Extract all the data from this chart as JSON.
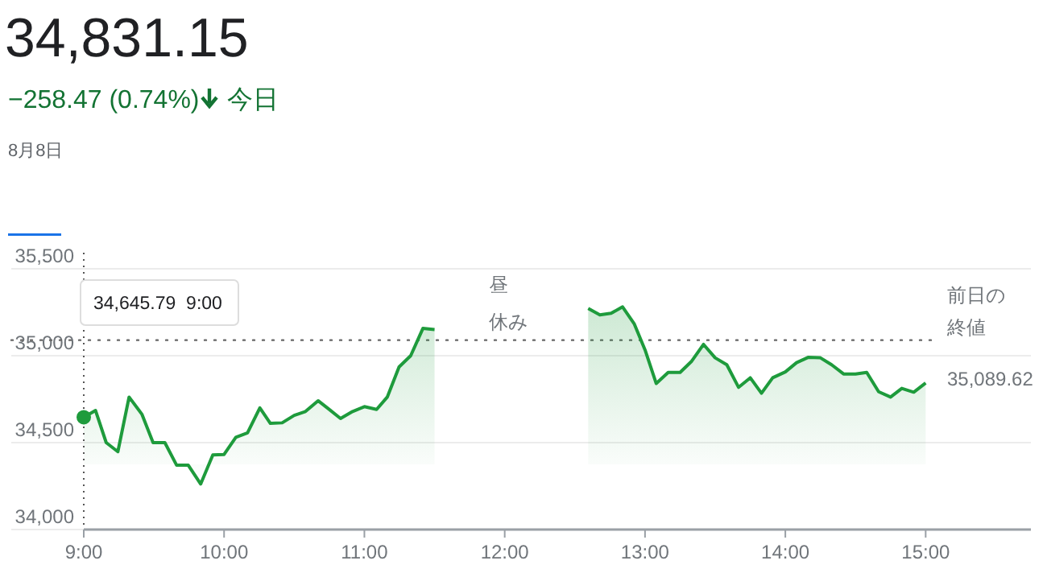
{
  "chart_data": {
    "type": "area",
    "title": "34,831.15",
    "subtitle": "−258.47 (0.74%)",
    "annotations": [
      "今日",
      "8月8日",
      "昼休み",
      "34,645.79  9:00",
      "35,089.62"
    ],
    "x": [
      9,
      9.084,
      9.16,
      9.243,
      9.323,
      9.414,
      9.494,
      9.578,
      9.662,
      9.745,
      9.833,
      9.92,
      10,
      10.084,
      10.167,
      10.255,
      10.33,
      10.414,
      10.5,
      10.58,
      10.67,
      10.745,
      10.83,
      10.916,
      11,
      11.087,
      11.163,
      11.247,
      11.33,
      11.417,
      11.5,
      12,
      12.595,
      12.678,
      12.758,
      12.84,
      12.924,
      13,
      13.08,
      13.165,
      13.25,
      13.333,
      13.417,
      13.5,
      13.583,
      13.667,
      13.75,
      13.83,
      13.91,
      14,
      14.08,
      14.165,
      14.25,
      14.33,
      14.415,
      14.5,
      14.58,
      14.665,
      14.75,
      14.83,
      14.915,
      15
    ],
    "series": [
      {
        "color": "#1e9b3c",
        "values": [
          34646,
          34685,
          34500,
          34448,
          34762,
          34664,
          34500,
          34500,
          34370,
          34370,
          34262,
          34429,
          34432,
          34531,
          34556,
          34700,
          34611,
          34614,
          34657,
          34679,
          34741,
          34694,
          34639,
          34679,
          34707,
          34691,
          34762,
          34935,
          35000,
          35157,
          35151,
          null,
          35272,
          35235,
          35244,
          35281,
          35182,
          35034,
          34840,
          34904,
          34904,
          34969,
          35065,
          34988,
          34948,
          34818,
          34873,
          34784,
          34873,
          34907,
          34960,
          34991,
          34988,
          34948,
          34895,
          34895,
          34904,
          34793,
          34762,
          34812,
          34790,
          34843
        ]
      }
    ],
    "xlim": [
      9,
      15.75
    ],
    "xticks": [
      {
        "value": 9,
        "label": "9:00"
      },
      {
        "value": 10,
        "label": "10:00"
      },
      {
        "value": 11,
        "label": "11:00"
      },
      {
        "value": 12,
        "label": "12:00"
      },
      {
        "value": 13,
        "label": "13:00"
      },
      {
        "value": 14,
        "label": "14:00"
      },
      {
        "value": 15,
        "label": "15:00"
      }
    ],
    "ylim": [
      34000,
      35500
    ],
    "yticks": [
      {
        "value": 34000,
        "label": "34,000"
      },
      {
        "value": 34500,
        "label": "34,500"
      },
      {
        "value": 35000,
        "label": "35,000"
      },
      {
        "value": 35500,
        "label": "35,500"
      }
    ],
    "grid": "y",
    "marker": "none",
    "line_style": "solid",
    "ref_lines": [
      {
        "axis": "y",
        "value": 35089.62,
        "label": "前日の終値",
        "line_style": "dotted",
        "color": "#666666"
      }
    ]
  }
}
